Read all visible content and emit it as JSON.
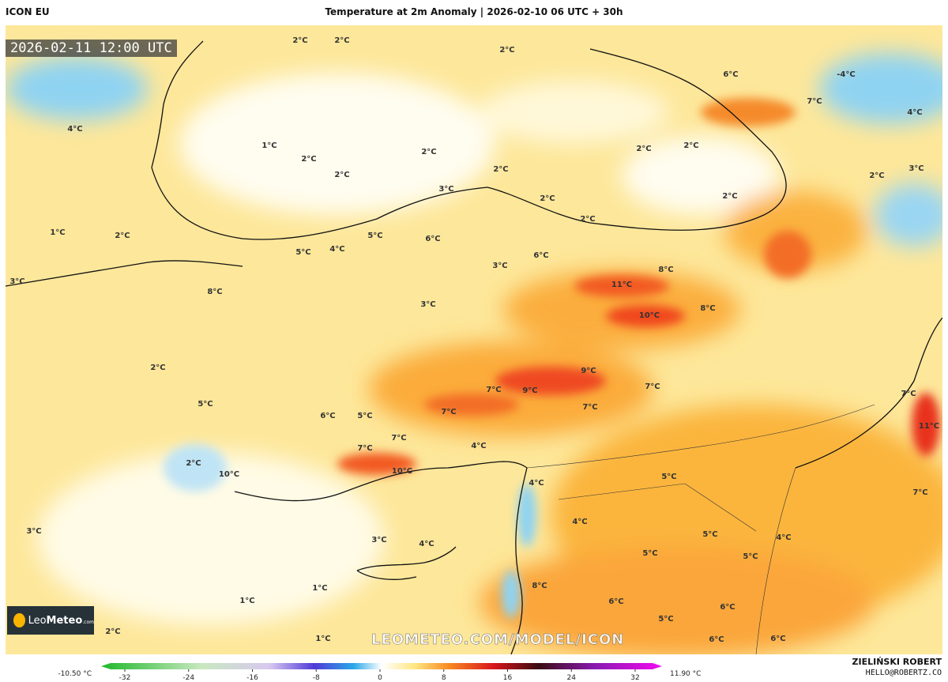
{
  "header": {
    "model": "ICON EU",
    "title": "Temperature at 2m Anomaly | 2026-02-10 06 UTC + 30h"
  },
  "timestamp": "2026-02-11 12:00 UTC",
  "logo": {
    "name": "Leo",
    "name_bold": "Meteo",
    "suffix": ".com"
  },
  "watermark": "LEOMETEO.COM/MODEL/ICON",
  "author": {
    "name": "ZIELIŃSKI ROBERT",
    "email": "HELLO@ROBERTZ.CO"
  },
  "colorbar": {
    "min_label": "-10.50 °C",
    "max_label": "11.90 °C",
    "range": [
      -32,
      32
    ],
    "ticks": [
      -32,
      -24,
      -16,
      -8,
      0,
      8,
      16,
      24,
      32
    ]
  },
  "map_labels": [
    "2°C",
    "2°C",
    "2°C",
    "1°C",
    "2°C",
    "2°C",
    "2°C",
    "2°C",
    "2°C",
    "2°C",
    "2°C",
    "2°C",
    "2°C",
    "3°C",
    "6°C",
    "5°C",
    "4°C",
    "5°C",
    "6°C",
    "11°C",
    "10°C",
    "8°C",
    "8°C",
    "9°C",
    "9°C",
    "7°C",
    "7°C",
    "7°C",
    "7°C",
    "10°C",
    "5°C",
    "6°C",
    "4°C",
    "7°C",
    "7°C",
    "11°C",
    "7°C",
    "7°C",
    "5°C",
    "5°C",
    "5°C",
    "5°C",
    "4°C",
    "6°C",
    "6°C",
    "5°C",
    "6°C",
    "6°C",
    "1°C",
    "1°C",
    "1°C",
    "2°C",
    "3°C",
    "3°C",
    "2°C",
    "1°C",
    "4°C",
    "6°C",
    "7°C",
    "-4°C",
    "4°C",
    "2°C",
    "3°C",
    "8°C",
    "2°C",
    "5°C",
    "2°C",
    "10°C",
    "3°C",
    "4°C",
    "8°C",
    "4°C",
    "4°C",
    "3°C",
    "3°C"
  ]
}
